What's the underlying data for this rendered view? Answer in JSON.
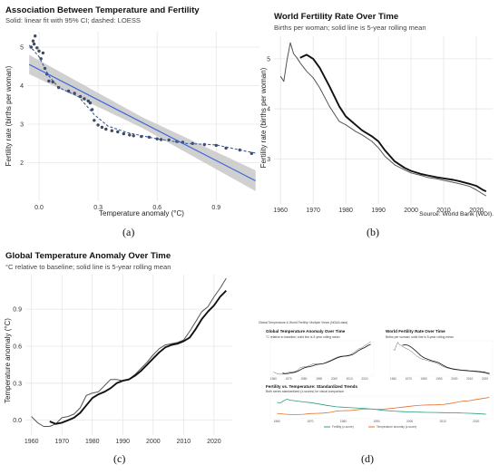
{
  "panels": {
    "a": {
      "label": "(a)"
    },
    "b": {
      "label": "(b)"
    },
    "c": {
      "label": "(c)"
    },
    "d": {
      "label": "(d)"
    }
  },
  "chart_data": [
    {
      "id": "a",
      "type": "scatter",
      "title": "Association Between Temperature and Fertility",
      "subtitle": "Solid: linear fit with 95% CI; dashed: LOESS",
      "xlabel": "Temperature anomaly (°C)",
      "ylabel": "Fertility rate (births per woman)",
      "xlim": [
        -0.06,
        1.12
      ],
      "ylim": [
        1.0,
        5.4
      ],
      "xticks": [
        "0.0",
        "0.3",
        "0.6",
        "0.9"
      ],
      "yticks": [
        "2",
        "3",
        "4",
        "5"
      ],
      "colors": {
        "points": "#3f4b63",
        "fit": "#3a66d6",
        "band": "#c8c8c8"
      },
      "points": [
        [
          -0.04,
          5.0
        ],
        [
          -0.03,
          5.16
        ],
        [
          -0.02,
          5.29
        ],
        [
          -0.025,
          5.08
        ],
        [
          -0.01,
          4.98
        ],
        [
          0.0,
          4.9
        ],
        [
          0.01,
          4.7
        ],
        [
          0.02,
          4.85
        ],
        [
          0.03,
          4.45
        ],
        [
          0.04,
          4.3
        ],
        [
          0.05,
          4.12
        ],
        [
          0.07,
          4.1
        ],
        [
          0.1,
          3.95
        ],
        [
          0.15,
          3.86
        ],
        [
          0.18,
          3.8
        ],
        [
          0.21,
          3.72
        ],
        [
          0.23,
          3.66
        ],
        [
          0.25,
          3.6
        ],
        [
          0.26,
          3.55
        ],
        [
          0.27,
          3.38
        ],
        [
          0.28,
          3.1
        ],
        [
          0.3,
          2.98
        ],
        [
          0.32,
          2.92
        ],
        [
          0.34,
          2.87
        ],
        [
          0.37,
          2.83
        ],
        [
          0.4,
          2.8
        ],
        [
          0.43,
          2.75
        ],
        [
          0.46,
          2.72
        ],
        [
          0.48,
          2.7
        ],
        [
          0.52,
          2.68
        ],
        [
          0.56,
          2.66
        ],
        [
          0.6,
          2.62
        ],
        [
          0.62,
          2.6
        ],
        [
          0.66,
          2.59
        ],
        [
          0.7,
          2.55
        ],
        [
          0.73,
          2.53
        ],
        [
          0.78,
          2.5
        ],
        [
          0.84,
          2.47
        ],
        [
          0.9,
          2.45
        ],
        [
          0.95,
          2.38
        ],
        [
          1.02,
          2.33
        ],
        [
          1.08,
          2.24
        ]
      ],
      "linear_fit": {
        "x": [
          -0.05,
          1.1
        ],
        "y": [
          4.55,
          1.53
        ],
        "ci_halfwidth": [
          0.25,
          0.14,
          0.27
        ]
      },
      "loess": {
        "x": [
          -0.05,
          0.0,
          0.05,
          0.1,
          0.2,
          0.28,
          0.35,
          0.45,
          0.6,
          0.75,
          0.9,
          1.05,
          1.1
        ],
        "y": [
          5.05,
          4.75,
          4.25,
          3.95,
          3.72,
          3.25,
          2.95,
          2.78,
          2.62,
          2.5,
          2.46,
          2.3,
          2.25
        ]
      }
    },
    {
      "id": "b",
      "type": "line",
      "title": "World Fertility Rate Over Time",
      "subtitle": "Births per woman; solid line is 5-year rolling mean",
      "xlabel": "",
      "ylabel": "Fertility rate (births per woman)",
      "source": "Source: World Bank (WDI).",
      "xlim": [
        1958,
        2025
      ],
      "ylim": [
        2.1,
        5.45
      ],
      "xticks": [
        1960,
        1970,
        1980,
        1990,
        2000,
        2010,
        2020
      ],
      "yticks": [
        3,
        4,
        5
      ],
      "x": [
        1960,
        1961,
        1962,
        1963,
        1964,
        1965,
        1966,
        1968,
        1970,
        1972,
        1975,
        1978,
        1980,
        1983,
        1985,
        1988,
        1990,
        1992,
        1995,
        1998,
        2000,
        2003,
        2005,
        2008,
        2010,
        2013,
        2015,
        2018,
        2020,
        2022,
        2023
      ],
      "series": [
        {
          "values": [
            4.65,
            4.55,
            4.98,
            5.32,
            5.1,
            5.02,
            4.92,
            4.75,
            4.62,
            4.42,
            4.05,
            3.75,
            3.68,
            3.55,
            3.48,
            3.35,
            3.22,
            3.05,
            2.88,
            2.78,
            2.72,
            2.67,
            2.63,
            2.6,
            2.57,
            2.53,
            2.5,
            2.45,
            2.38,
            2.3,
            2.26
          ],
          "style": "thin",
          "color": "#555555"
        },
        {
          "values": [
            null,
            null,
            null,
            null,
            null,
            null,
            5.02,
            5.08,
            5.0,
            4.82,
            4.45,
            4.05,
            3.85,
            3.68,
            3.57,
            3.45,
            3.35,
            3.17,
            2.95,
            2.82,
            2.76,
            2.7,
            2.67,
            2.63,
            2.61,
            2.58,
            2.55,
            2.5,
            2.46,
            2.38,
            2.35
          ],
          "style": "thick",
          "color": "#111111"
        }
      ]
    },
    {
      "id": "c",
      "type": "line",
      "title": "Global Temperature Anomaly Over Time",
      "subtitle": "°C relative to baseline; solid line is 5-year rolling mean",
      "xlabel": "",
      "ylabel": "Temperature anomaly (°C)",
      "xlim": [
        1958,
        2026
      ],
      "ylim": [
        -0.12,
        1.18
      ],
      "xticks": [
        1960,
        1970,
        1980,
        1990,
        2000,
        2010,
        2020
      ],
      "yticks": [
        "0.0",
        "0.3",
        "0.6",
        "0.9"
      ],
      "x": [
        1960,
        1962,
        1964,
        1966,
        1968,
        1970,
        1972,
        1974,
        1976,
        1978,
        1980,
        1982,
        1984,
        1986,
        1988,
        1990,
        1992,
        1994,
        1996,
        1998,
        2000,
        2002,
        2004,
        2006,
        2008,
        2010,
        2012,
        2014,
        2016,
        2018,
        2020,
        2022,
        2024
      ],
      "series": [
        {
          "values": [
            0.03,
            -0.02,
            -0.05,
            -0.05,
            -0.03,
            0.02,
            0.03,
            0.05,
            0.1,
            0.2,
            0.22,
            0.23,
            0.28,
            0.33,
            0.33,
            0.32,
            0.33,
            0.37,
            0.42,
            0.47,
            0.53,
            0.58,
            0.61,
            0.62,
            0.63,
            0.65,
            0.72,
            0.8,
            0.88,
            0.92,
            1.0,
            1.07,
            1.15
          ],
          "style": "thin",
          "color": "#555555"
        },
        {
          "values": [
            null,
            null,
            null,
            -0.01,
            -0.03,
            -0.02,
            0.0,
            0.02,
            0.06,
            0.12,
            0.18,
            0.21,
            0.23,
            0.26,
            0.3,
            0.32,
            0.33,
            0.36,
            0.4,
            0.45,
            0.5,
            0.55,
            0.59,
            0.61,
            0.62,
            0.64,
            0.67,
            0.74,
            0.82,
            0.88,
            0.93,
            1.0,
            1.05
          ],
          "style": "thick",
          "color": "#111111"
        }
      ]
    },
    {
      "id": "d",
      "type": "line",
      "title": "Global Temperature & World Fertility: Multiple Views (NOAA data)",
      "subplots": [
        {
          "title": "Global Temperature Anomaly Over Time",
          "subtitle": "°C relative to baseline; solid line is 5-year rolling mean",
          "xticks": [
            1960,
            1970,
            1980,
            1990,
            2000,
            2010,
            2020
          ],
          "xlabel": "",
          "ylabel": ""
        },
        {
          "title": "World Fertility Rate Over Time",
          "subtitle": "Births per woman; solid line is 5-year rolling mean",
          "xticks": [
            1960,
            1970,
            1980,
            1990,
            2000,
            2010,
            2020
          ],
          "xlabel": "",
          "ylabel": ""
        },
        {
          "title": "Fertility vs. Temperature: Standardized Trends",
          "subtitle": "Both series standardized (z-scores) for visual comparison",
          "xticks": [
            1960,
            1970,
            1980,
            1990,
            2000,
            2010,
            2020
          ],
          "xlabel": "",
          "ylabel": "",
          "legend": [
            "Fertility (z-score)",
            "Temperature anomaly (z-score)"
          ],
          "colors": {
            "fertility": "#2a9d78",
            "temperature": "#e0702a"
          }
        }
      ]
    }
  ]
}
